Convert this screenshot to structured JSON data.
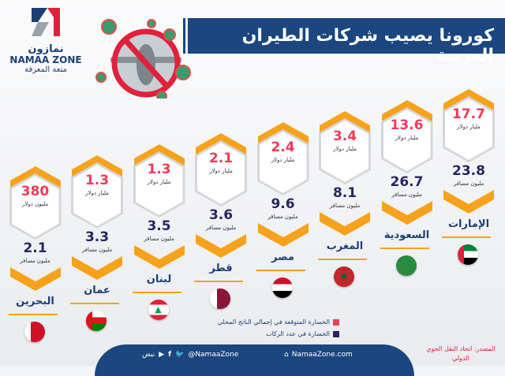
{
  "logo": {
    "arabic": "نمازون",
    "english": "NAMAA ZONE",
    "tagline": "متعة المعرفة"
  },
  "title": "كورونا يصيب شركات الطيران العربية",
  "colors": {
    "gdp": "#f23a5a",
    "passengers": "#2a2560",
    "accent": "#f7a21b",
    "brand": "#1b467f"
  },
  "countries": [
    {
      "name": "الإمارات",
      "gdp_loss": "17.7",
      "gdp_unit": "مليار دولار",
      "passenger_loss": "23.8",
      "passenger_unit": "مليون مسافر",
      "flag": "uae-flag-icon"
    },
    {
      "name": "السعودية",
      "gdp_loss": "13.6",
      "gdp_unit": "مليار دولار",
      "passenger_loss": "26.7",
      "passenger_unit": "مليون مسافر",
      "flag": "saudi-flag-icon"
    },
    {
      "name": "المغرب",
      "gdp_loss": "3.4",
      "gdp_unit": "مليار دولار",
      "passenger_loss": "8.1",
      "passenger_unit": "مليون مسافر",
      "flag": "morocco-flag-icon"
    },
    {
      "name": "مصر",
      "gdp_loss": "2.4",
      "gdp_unit": "مليار دولار",
      "passenger_loss": "9.6",
      "passenger_unit": "مليون مسافر",
      "flag": "egypt-flag-icon"
    },
    {
      "name": "قطر",
      "gdp_loss": "2.1",
      "gdp_unit": "مليار دولار",
      "passenger_loss": "3.6",
      "passenger_unit": "مليون مسافر",
      "flag": "qatar-flag-icon"
    },
    {
      "name": "لبنان",
      "gdp_loss": "1.3",
      "gdp_unit": "مليار دولار",
      "passenger_loss": "3.5",
      "passenger_unit": "مليون مسافر",
      "flag": "lebanon-flag-icon"
    },
    {
      "name": "عمان",
      "gdp_loss": "1.3",
      "gdp_unit": "مليار دولار",
      "passenger_loss": "3.3",
      "passenger_unit": "مليون مسافر",
      "flag": "oman-flag-icon"
    },
    {
      "name": "البحرين",
      "gdp_loss": "380",
      "gdp_unit": "مليون دولار",
      "passenger_loss": "2.1",
      "passenger_unit": "مليون مسافر",
      "flag": "bahrain-flag-icon"
    }
  ],
  "legend": [
    {
      "label": "الخسارة المتوقعة في إجمالي الناتج المحلي",
      "color": "#f23a5a"
    },
    {
      "label": "الخسارة في عدد الركاب",
      "color": "#2a2560"
    }
  ],
  "footer": {
    "website": "NamaaZone.com",
    "handle": "@NamaaZone",
    "nabd": "نبض"
  },
  "source": "المصدر: اتحاد النقل الجوي الدولي"
}
